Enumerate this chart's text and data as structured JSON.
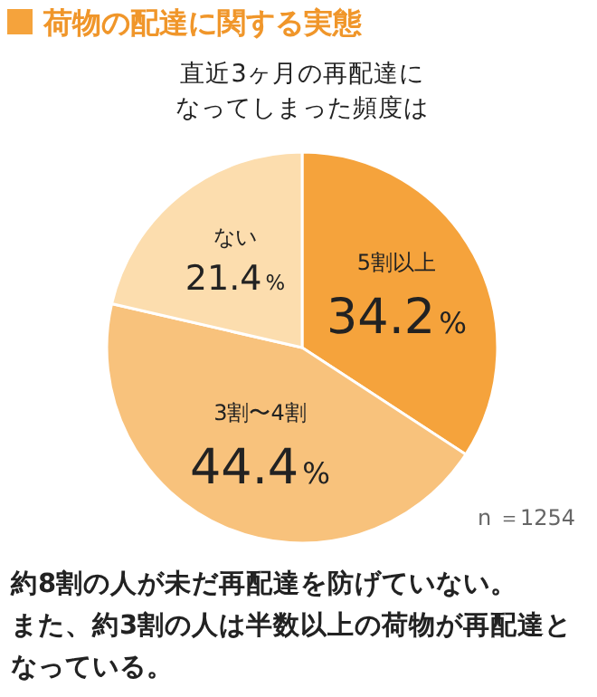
{
  "chart_data": {
    "type": "pie",
    "title": "荷物の配達に関する実態",
    "subtitle": "直近3ヶ月の再配達になってしまった頻度は",
    "categories": [
      "5割以上",
      "3割〜4割",
      "ない"
    ],
    "values": [
      34.2,
      44.4,
      21.4
    ],
    "value_labels": [
      "34.2%",
      "44.4%",
      "21.4%"
    ],
    "colors": [
      "#f5a33c",
      "#f8c27c",
      "#fcddae"
    ],
    "annotations": [
      "n ＝1254",
      "約8割の人が未だ再配達を防げていない。",
      "また、約3割の人は半数以上の荷物が再配達となっている。"
    ]
  }
}
